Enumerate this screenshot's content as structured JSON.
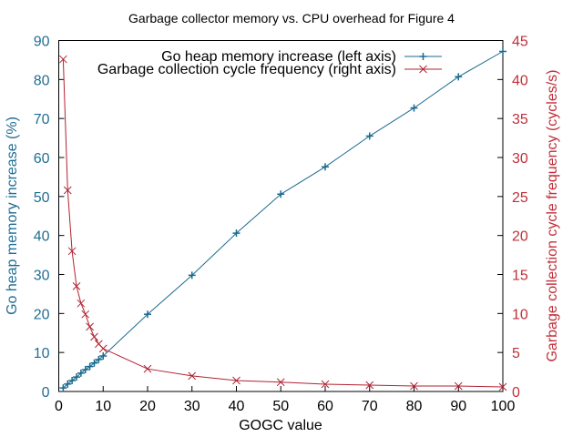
{
  "chart_data": {
    "type": "line",
    "title": "Garbage collector memory vs. CPU overhead for Figure 4",
    "xlabel": "GOGC value",
    "ylabel": "Go heap memory increase (%)",
    "y2label": "Garbage collection cycle frequency (cycles/s)",
    "xlim": [
      0,
      100
    ],
    "ylim": [
      0,
      90
    ],
    "y2lim": [
      0,
      45
    ],
    "x_ticks": [
      0,
      10,
      20,
      30,
      40,
      50,
      60,
      70,
      80,
      90,
      100
    ],
    "y_ticks": [
      0,
      10,
      20,
      30,
      40,
      50,
      60,
      70,
      80,
      90
    ],
    "y2_ticks": [
      0,
      5,
      10,
      15,
      20,
      25,
      30,
      35,
      40,
      45
    ],
    "grid": false,
    "legend_position": "top-right (inside)",
    "x": [
      1,
      2,
      3,
      4,
      5,
      6,
      7,
      8,
      9,
      10,
      20,
      30,
      40,
      50,
      60,
      70,
      80,
      90,
      100
    ],
    "series": [
      {
        "name": "Go heap memory increase (left axis)",
        "axis": "left",
        "color": "#1a6a8f",
        "marker": "plus",
        "values": [
          0.9,
          1.9,
          2.8,
          3.7,
          4.7,
          5.6,
          6.4,
          7.3,
          8.2,
          9.1,
          19.8,
          29.8,
          40.6,
          50.6,
          57.6,
          65.5,
          72.7,
          80.7,
          87.2
        ]
      },
      {
        "name": "Garbage collection cycle frequency (right axis)",
        "axis": "right",
        "color": "#b22232",
        "marker": "cross",
        "values": [
          42.6,
          25.8,
          18.0,
          13.5,
          11.3,
          9.9,
          8.3,
          7.0,
          6.1,
          5.5,
          2.9,
          2.0,
          1.4,
          1.2,
          0.93,
          0.82,
          0.7,
          0.7,
          0.58
        ]
      }
    ]
  }
}
